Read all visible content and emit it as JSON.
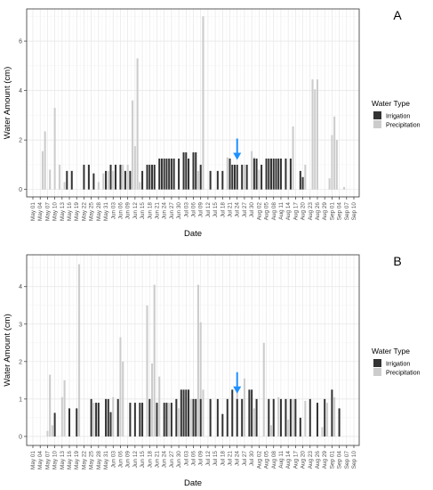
{
  "chart_data": [
    {
      "type": "bar",
      "panel_label": "A",
      "xlabel": "Date",
      "ylabel": "Water Amount (cm)",
      "ylim": [
        -0.3,
        7.3
      ],
      "y_ticks": [
        0,
        2,
        4,
        6
      ],
      "x_tick_labels": [
        "May 01",
        "May 04",
        "May 07",
        "May 10",
        "May 13",
        "May 16",
        "May 19",
        "May 22",
        "May 25",
        "May 28",
        "May 31",
        "Jun 03",
        "Jun 06",
        "Jun 09",
        "Jun 12",
        "Jun 15",
        "Jun 18",
        "Jun 21",
        "Jun 24",
        "Jun 27",
        "Jun 30",
        "Jul 03",
        "Jul 06",
        "Jul 09",
        "Jul 12",
        "Jul 15",
        "Jul 18",
        "Jul 21",
        "Jul 24",
        "Jul 27",
        "Jul 30",
        "Aug 02",
        "Aug 05",
        "Aug 08",
        "Aug 11",
        "Aug 14",
        "Aug 17",
        "Aug 20",
        "Aug 23",
        "Aug 26",
        "Aug 29",
        "Sep 01",
        "Sep 04",
        "Sep 07",
        "Sep 10"
      ],
      "grid": true,
      "legend": {
        "title": "Water Type",
        "position": "right",
        "entries": [
          {
            "name": "Irrigation",
            "color": "#333333"
          },
          {
            "name": "Precipitation",
            "color": "#cccccc"
          }
        ]
      },
      "arrow_at_day": 84,
      "series": [
        {
          "name": "Irrigation",
          "color": "#333333",
          "points": [
            [
              14,
              0.75
            ],
            [
              16,
              0.75
            ],
            [
              21,
              1.0
            ],
            [
              23,
              1.0
            ],
            [
              25,
              0.65
            ],
            [
              30,
              0.75
            ],
            [
              32,
              1.0
            ],
            [
              34,
              1.0
            ],
            [
              36,
              1.0
            ],
            [
              38,
              0.75
            ],
            [
              40,
              0.75
            ],
            [
              45,
              0.75
            ],
            [
              47,
              1.0
            ],
            [
              48,
              1.0
            ],
            [
              49,
              1.0
            ],
            [
              50,
              1.0
            ],
            [
              52,
              1.25
            ],
            [
              53,
              1.25
            ],
            [
              54,
              1.25
            ],
            [
              55,
              1.25
            ],
            [
              56,
              1.25
            ],
            [
              57,
              1.25
            ],
            [
              58,
              1.25
            ],
            [
              60,
              1.25
            ],
            [
              62,
              1.5
            ],
            [
              63,
              1.5
            ],
            [
              64,
              1.25
            ],
            [
              66,
              1.5
            ],
            [
              67,
              1.5
            ],
            [
              69,
              1.0
            ],
            [
              73,
              0.75
            ],
            [
              76,
              0.75
            ],
            [
              78,
              0.75
            ],
            [
              81,
              1.25
            ],
            [
              82,
              1.0
            ],
            [
              83,
              1.0
            ],
            [
              84,
              1.0
            ],
            [
              86,
              1.0
            ],
            [
              88,
              1.0
            ],
            [
              91,
              1.25
            ],
            [
              92,
              1.25
            ],
            [
              94,
              1.0
            ],
            [
              96,
              1.25
            ],
            [
              97,
              1.25
            ],
            [
              98,
              1.25
            ],
            [
              99,
              1.25
            ],
            [
              100,
              1.25
            ],
            [
              101,
              1.25
            ],
            [
              102,
              1.25
            ],
            [
              104,
              1.25
            ],
            [
              106,
              1.25
            ],
            [
              110,
              0.75
            ],
            [
              111,
              0.5
            ]
          ]
        },
        {
          "name": "Precipitation",
          "color": "#cccccc",
          "points": [
            [
              4,
              1.55
            ],
            [
              5,
              2.35
            ],
            [
              7,
              0.8
            ],
            [
              9,
              3.3
            ],
            [
              11,
              1.0
            ],
            [
              13,
              0.3
            ],
            [
              27,
              0.3
            ],
            [
              29,
              0.65
            ],
            [
              31,
              0.75
            ],
            [
              33,
              0.75
            ],
            [
              37,
              1.0
            ],
            [
              39,
              1.0
            ],
            [
              41,
              3.6
            ],
            [
              42,
              1.75
            ],
            [
              43,
              5.3
            ],
            [
              44,
              0.3
            ],
            [
              45,
              0.3
            ],
            [
              68,
              0.75
            ],
            [
              70,
              7.0
            ],
            [
              80,
              1.3
            ],
            [
              87,
              1.0
            ],
            [
              90,
              1.55
            ],
            [
              91,
              1.3
            ],
            [
              93,
              0.8
            ],
            [
              107,
              2.55
            ],
            [
              112,
              1.0
            ],
            [
              115,
              4.45
            ],
            [
              116,
              4.05
            ],
            [
              117,
              4.45
            ],
            [
              122,
              0.45
            ],
            [
              123,
              2.2
            ],
            [
              124,
              2.95
            ],
            [
              125,
              2.0
            ],
            [
              128,
              0.1
            ]
          ]
        }
      ]
    },
    {
      "type": "bar",
      "panel_label": "B",
      "xlabel": "Date",
      "ylabel": "Water Amount (cm)",
      "ylim": [
        -0.24,
        4.85
      ],
      "y_ticks": [
        0,
        1,
        2,
        3,
        4
      ],
      "x_tick_labels": [
        "May 01",
        "May 04",
        "May 07",
        "May 10",
        "May 13",
        "May 16",
        "May 19",
        "May 22",
        "May 25",
        "May 28",
        "May 31",
        "Jun 03",
        "Jun 06",
        "Jun 09",
        "Jun 12",
        "Jun 15",
        "Jun 18",
        "Jun 21",
        "Jun 24",
        "Jun 27",
        "Jun 30",
        "Jul 03",
        "Jul 06",
        "Jul 09",
        "Jul 12",
        "Jul 15",
        "Jul 18",
        "Jul 21",
        "Jul 24",
        "Jul 27",
        "Jul 30",
        "Aug 02",
        "Aug 05",
        "Aug 08",
        "Aug 11",
        "Aug 14",
        "Aug 17",
        "Aug 20",
        "Aug 23",
        "Aug 26",
        "Aug 29",
        "Sep 01",
        "Sep 04",
        "Sep 07",
        "Sep 10"
      ],
      "grid": true,
      "legend": {
        "title": "Water Type",
        "position": "right",
        "entries": [
          {
            "name": "Irrigation",
            "color": "#333333"
          },
          {
            "name": "Precipitation",
            "color": "#cccccc"
          }
        ]
      },
      "arrow_at_day": 84,
      "series": [
        {
          "name": "Irrigation",
          "color": "#333333",
          "points": [
            [
              9,
              0.63
            ],
            [
              15,
              0.75
            ],
            [
              18,
              0.75
            ],
            [
              24,
              1.0
            ],
            [
              26,
              0.9
            ],
            [
              27,
              0.9
            ],
            [
              30,
              1.0
            ],
            [
              31,
              1.0
            ],
            [
              32,
              0.65
            ],
            [
              35,
              1.0
            ],
            [
              40,
              0.9
            ],
            [
              42,
              0.9
            ],
            [
              44,
              0.9
            ],
            [
              45,
              0.9
            ],
            [
              48,
              1.0
            ],
            [
              51,
              0.9
            ],
            [
              54,
              0.9
            ],
            [
              55,
              0.9
            ],
            [
              57,
              0.9
            ],
            [
              59,
              1.0
            ],
            [
              61,
              1.25
            ],
            [
              62,
              1.25
            ],
            [
              63,
              1.25
            ],
            [
              64,
              1.25
            ],
            [
              66,
              1.0
            ],
            [
              67,
              1.0
            ],
            [
              69,
              1.0
            ],
            [
              73,
              1.0
            ],
            [
              76,
              1.0
            ],
            [
              78,
              0.6
            ],
            [
              80,
              1.0
            ],
            [
              82,
              1.25
            ],
            [
              84,
              1.0
            ],
            [
              86,
              1.0
            ],
            [
              89,
              1.25
            ],
            [
              90,
              1.25
            ],
            [
              92,
              1.0
            ],
            [
              97,
              1.0
            ],
            [
              99,
              1.0
            ],
            [
              102,
              1.0
            ],
            [
              104,
              1.0
            ],
            [
              106,
              1.0
            ],
            [
              108,
              1.0
            ],
            [
              110,
              0.5
            ],
            [
              114,
              1.0
            ],
            [
              117,
              0.9
            ],
            [
              120,
              1.0
            ],
            [
              123,
              1.25
            ],
            [
              126,
              0.75
            ]
          ]
        },
        {
          "name": "Precipitation",
          "color": "#cccccc",
          "points": [
            [
              6,
              0.15
            ],
            [
              7,
              1.65
            ],
            [
              8,
              0.3
            ],
            [
              12,
              1.05
            ],
            [
              13,
              1.5
            ],
            [
              19,
              4.6
            ],
            [
              25,
              0.9
            ],
            [
              33,
              1.05
            ],
            [
              36,
              2.65
            ],
            [
              37,
              2.0
            ],
            [
              47,
              3.5
            ],
            [
              49,
              1.95
            ],
            [
              50,
              4.05
            ],
            [
              52,
              1.6
            ],
            [
              56,
              0.9
            ],
            [
              60,
              0.75
            ],
            [
              65,
              1.0
            ],
            [
              68,
              4.05
            ],
            [
              69,
              3.05
            ],
            [
              70,
              1.25
            ],
            [
              84,
              1.3
            ],
            [
              87,
              1.55
            ],
            [
              91,
              0.75
            ],
            [
              95,
              2.5
            ],
            [
              98,
              0.3
            ],
            [
              101,
              1.05
            ],
            [
              105,
              0.45
            ],
            [
              107,
              1.0
            ],
            [
              112,
              0.95
            ],
            [
              119,
              0.25
            ],
            [
              121,
              0.9
            ],
            [
              124,
              1.05
            ]
          ]
        }
      ]
    }
  ]
}
